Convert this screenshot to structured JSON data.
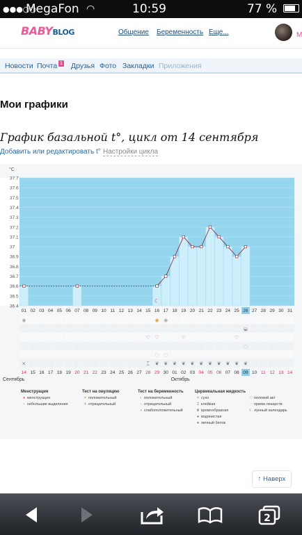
{
  "status": {
    "carrier": "MegaFon",
    "time": "10:59",
    "battery": "77 %"
  },
  "brand": {
    "logo_a": "BABY",
    "logo_b": "BLOG"
  },
  "topnav": {
    "items": [
      "Общение",
      "Беременность",
      "Еще..."
    ],
    "edge": "М"
  },
  "subnav": {
    "items": [
      "Новости",
      "Почта",
      "Друзья",
      "Фото",
      "Закладки",
      "Приложения"
    ],
    "mail_badge": "1"
  },
  "page": {
    "title": "Мои графики",
    "chart_title": "График базальной t°, цикл от 14 сентября",
    "edit_link": "Добавить или редактировать t°",
    "settings_link": "Настройки цикла"
  },
  "chart_data": {
    "type": "area",
    "ylabel": "°C",
    "ylim": [
      36.4,
      37.7
    ],
    "yticks": [
      "37.7",
      "37.6",
      "37.5",
      "37.4",
      "37.3",
      "37.2",
      "37.1",
      "37",
      "36.9",
      "36.8",
      "36.7",
      "36.6",
      "36.5",
      "36.4"
    ],
    "x": [
      "01",
      "02",
      "03",
      "04",
      "05",
      "06",
      "07",
      "08",
      "09",
      "10",
      "11",
      "12",
      "13",
      "14",
      "15",
      "16",
      "17",
      "18",
      "19",
      "20",
      "21",
      "22",
      "23",
      "24",
      "25",
      "26",
      "27",
      "28",
      "29",
      "30",
      "31"
    ],
    "values": [
      36.6,
      null,
      null,
      null,
      null,
      null,
      36.6,
      null,
      null,
      null,
      null,
      null,
      null,
      null,
      null,
      36.6,
      36.7,
      36.9,
      37.1,
      37.0,
      37.0,
      37.2,
      37.1,
      37.0,
      36.9,
      37.0,
      null,
      null,
      null,
      null,
      null
    ],
    "highlight_day": "26",
    "cycle_days": [
      "14",
      "15",
      "16",
      "17",
      "18",
      "19",
      "20",
      "21",
      "22",
      "23",
      "24",
      "25",
      "26",
      "27",
      "28",
      "29",
      "30",
      "01",
      "02",
      "03",
      "04",
      "05",
      "06",
      "07",
      "08",
      "09",
      "10",
      "11",
      "12",
      "13",
      "14"
    ],
    "red_cycle_days": [
      "14",
      "20",
      "21",
      "22",
      "28",
      "29",
      "04",
      "05",
      "06",
      "11",
      "12",
      "13"
    ],
    "highlight_cycle_day": "09",
    "month_start": "Сентябрь",
    "month_next": "Октябрь"
  },
  "legend": {
    "menstruation": {
      "title": "Менструация",
      "items": [
        "менструация",
        "небольшие выделения"
      ]
    },
    "ovulation": {
      "title": "Тест на овуляцию",
      "items": [
        "положительный",
        "отрицательный"
      ]
    },
    "pregnancy": {
      "title": "Тест на беременность",
      "items": [
        "положительный",
        "отрицательный",
        "слабоположительный"
      ]
    },
    "mucus": {
      "title": "Цервикальная жидкость",
      "items": [
        "сухо",
        "клейкая",
        "кремообразная",
        "водянистая",
        "яичный белок"
      ]
    },
    "other": {
      "items": [
        "половой акт",
        "прием лекарств",
        "лунный календарь"
      ]
    }
  },
  "back_to_top": "↑ Наверх",
  "colors": {
    "chart_bg": "#95d5ee",
    "bar": "#cdeefb",
    "line": "#8b2030",
    "accent": "#e34d92",
    "link": "#2162a0"
  }
}
